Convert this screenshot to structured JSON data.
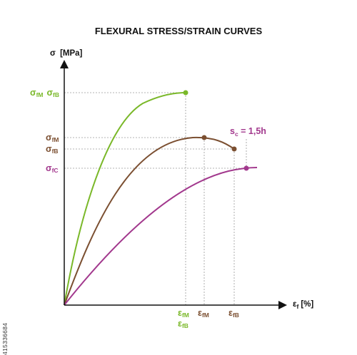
{
  "title": "FLEXURAL STRESS/STRAIN CURVES",
  "y_axis": {
    "symbol": "σ",
    "unit": "[MPa]"
  },
  "x_axis": {
    "symbol": "ε",
    "subscript": "f",
    "unit": "[%]"
  },
  "annotation": {
    "text": "s",
    "subscript": "c",
    "suffix": " = 1,5h"
  },
  "stock_id": "415336684",
  "colors": {
    "green": "#7ab829",
    "brown": "#7b4f31",
    "purple": "#a2388d",
    "axis": "#111111",
    "guide": "#9a9a9a"
  },
  "y_labels": [
    {
      "parts": [
        {
          "sym": "σ",
          "sub": "fM"
        },
        {
          "sym": "σ",
          "sub": "fB"
        }
      ],
      "color": "green"
    },
    {
      "parts": [
        {
          "sym": "σ",
          "sub": "fM"
        }
      ],
      "color": "brown"
    },
    {
      "parts": [
        {
          "sym": "σ",
          "sub": "fB"
        }
      ],
      "color": "brown"
    },
    {
      "parts": [
        {
          "sym": "σ",
          "sub": "fC"
        }
      ],
      "color": "purple"
    }
  ],
  "x_labels": [
    {
      "sym": "ε",
      "sub": "fM",
      "color": "green"
    },
    {
      "sym": "ε",
      "sub": "fB",
      "color": "green"
    },
    {
      "sym": "ε",
      "sub": "fM",
      "color": "brown"
    },
    {
      "sym": "ε",
      "sub": "fB",
      "color": "brown"
    }
  ],
  "curves": [
    {
      "name": "green",
      "color": "green"
    },
    {
      "name": "brown",
      "color": "brown"
    },
    {
      "name": "purple",
      "color": "purple"
    }
  ]
}
